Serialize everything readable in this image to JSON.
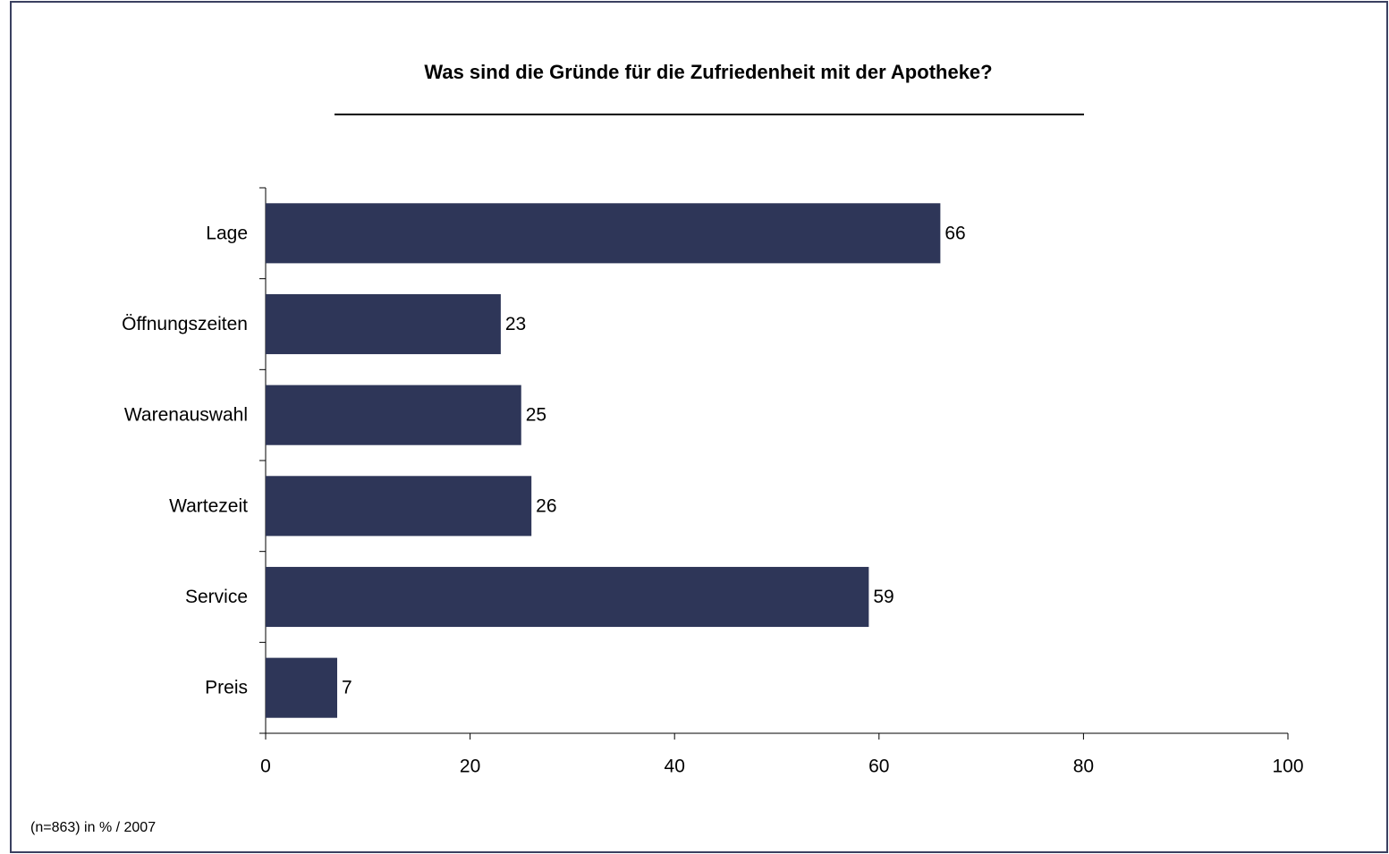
{
  "chart_data": {
    "type": "bar",
    "orientation": "horizontal",
    "title": "Was sind die Gründe für die Zufriedenheit mit der Apotheke?",
    "footnote": "(n=863) in % / 2007",
    "categories": [
      "Lage",
      "Öffnungszeiten",
      "Warenauswahl",
      "Wartezeit",
      "Service",
      "Preis"
    ],
    "values": [
      66,
      23,
      25,
      26,
      59,
      7
    ],
    "color": "#2e3658",
    "xlim": [
      0,
      100
    ],
    "xticks": [
      0,
      20,
      40,
      60,
      80,
      100
    ],
    "grid": false
  }
}
